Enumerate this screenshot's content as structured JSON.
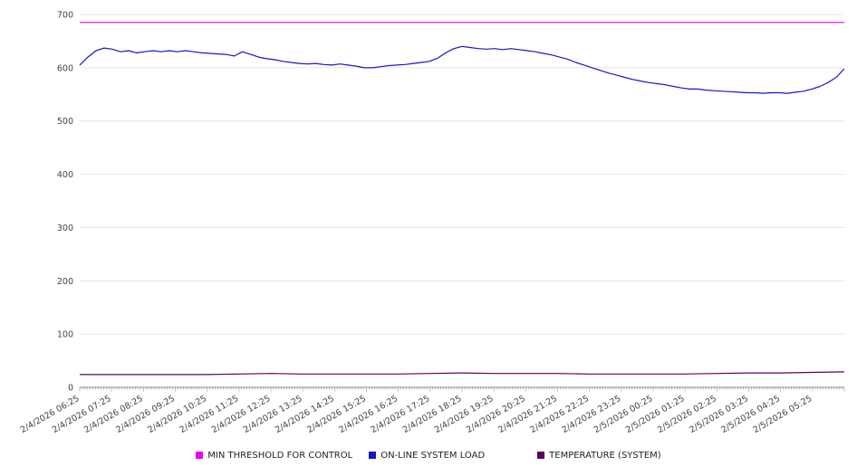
{
  "chart_data": {
    "type": "line",
    "title": "",
    "xlabel": "",
    "ylabel": "",
    "ylim": [
      0,
      700
    ],
    "yticks": [
      0,
      100,
      200,
      300,
      400,
      500,
      600,
      700
    ],
    "grid": "horizontal",
    "legend_position": "bottom",
    "x_labels": [
      "2/4/2026 06:25",
      "2/4/2026 07:25",
      "2/4/2026 08:25",
      "2/4/2026 09:25",
      "2/4/2026 10:25",
      "2/4/2026 11:25",
      "2/4/2026 12:25",
      "2/4/2026 13:25",
      "2/4/2026 14:25",
      "2/4/2026 15:25",
      "2/4/2026 16:25",
      "2/4/2026 17:25",
      "2/4/2026 18:25",
      "2/4/2026 19:25",
      "2/4/2026 20:25",
      "2/4/2026 21:25",
      "2/4/2026 22:25",
      "2/4/2026 23:25",
      "2/5/2026 00:25",
      "2/5/2026 01:25",
      "2/5/2026 02:25",
      "2/5/2026 03:25",
      "2/5/2026 04:25",
      "2/5/2026 05:25"
    ],
    "series": [
      {
        "name": "MIN THRESHOLD FOR CONTROL",
        "color": "#ee00ee",
        "values": [
          685,
          685
        ]
      },
      {
        "name": "ON-LINE SYSTEM LOAD",
        "color": "#1717c8",
        "values": [
          605,
          620,
          632,
          637,
          635,
          630,
          632,
          628,
          630,
          632,
          630,
          632,
          630,
          632,
          630,
          628,
          627,
          626,
          625,
          622,
          630,
          625,
          620,
          617,
          615,
          612,
          610,
          608,
          607,
          608,
          606,
          605,
          607,
          605,
          603,
          600,
          600,
          602,
          604,
          605,
          606,
          608,
          610,
          612,
          618,
          628,
          636,
          640,
          638,
          636,
          635,
          636,
          634,
          636,
          634,
          632,
          630,
          627,
          624,
          620,
          616,
          610,
          605,
          600,
          595,
          590,
          586,
          582,
          578,
          575,
          572,
          570,
          568,
          565,
          562,
          560,
          560,
          558,
          557,
          556,
          555,
          554,
          553,
          553,
          552,
          553,
          553,
          552,
          554,
          556,
          560,
          565,
          572,
          582,
          598
        ]
      },
      {
        "name": "TEMPERATURE (SYSTEM)",
        "color": "#5c005c",
        "values": [
          24,
          24,
          24,
          24,
          24,
          25,
          26,
          25,
          25,
          25,
          25,
          26,
          27,
          26,
          26,
          26,
          25,
          25,
          25,
          25,
          26,
          27,
          27,
          28,
          29
        ]
      }
    ]
  },
  "legend": {
    "item1": "MIN THRESHOLD FOR CONTROL",
    "item2": "ON-LINE SYSTEM LOAD",
    "item3": "TEMPERATURE (SYSTEM)"
  }
}
